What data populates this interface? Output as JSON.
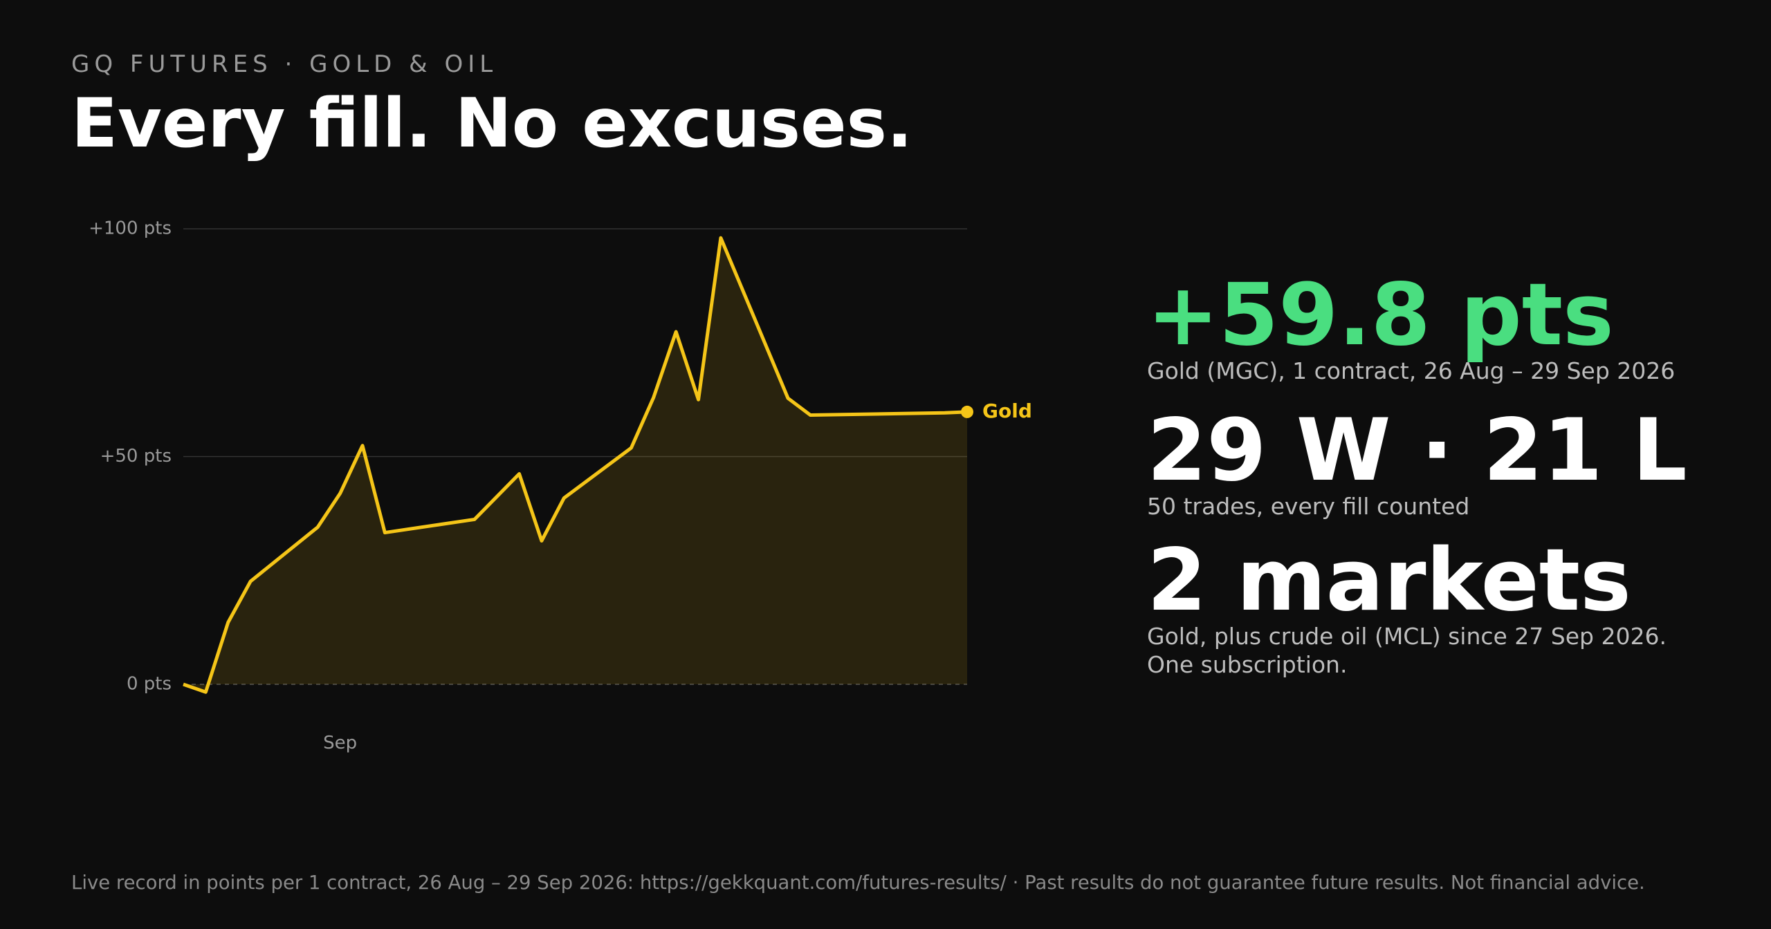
{
  "header": {
    "kicker": "GQ FUTURES · GOLD & OIL",
    "title": "Every fill. No excuses."
  },
  "chart_data": {
    "type": "line",
    "x": [
      0,
      1,
      2,
      3,
      6,
      7,
      8,
      9,
      13,
      15,
      16,
      17,
      20,
      21,
      22,
      23,
      24,
      27,
      28,
      34,
      35
    ],
    "series": [
      {
        "name": "Gold",
        "color": "#f5c518",
        "values": [
          0,
          -1.7,
          13.6,
          22.6,
          34.5,
          41.9,
          52.4,
          33.3,
          36.2,
          46.2,
          31.5,
          40.9,
          51.9,
          63,
          77.4,
          62.5,
          98,
          62.8,
          59.1,
          59.6,
          59.8
        ]
      }
    ],
    "xlim": [
      0,
      35
    ],
    "xticks": [
      {
        "value": 7,
        "label": "Sep"
      }
    ],
    "ylim": [
      0,
      100
    ],
    "yticks": [
      {
        "value": 0,
        "label": "0 pts"
      },
      {
        "value": 50,
        "label": "+50 pts"
      },
      {
        "value": 100,
        "label": "+100 pts"
      }
    ],
    "grid": true
  },
  "stats": [
    {
      "value": "+59.8 pts",
      "caption": [
        "Gold (MGC), 1 contract, 26 Aug – 29 Sep 2026"
      ]
    },
    {
      "value": "29 W · 21 L",
      "caption": [
        "50 trades, every fill counted"
      ]
    },
    {
      "value": "2 markets",
      "caption": [
        "Gold, plus crude oil (MCL) since 27 Sep 2026.",
        "One subscription."
      ]
    }
  ],
  "footer": "Live record in points per 1 contract, 26 Aug – 29 Sep 2026: https://gekkquant.com/futures-results/ · Past results do not guarantee future results. Not financial advice."
}
